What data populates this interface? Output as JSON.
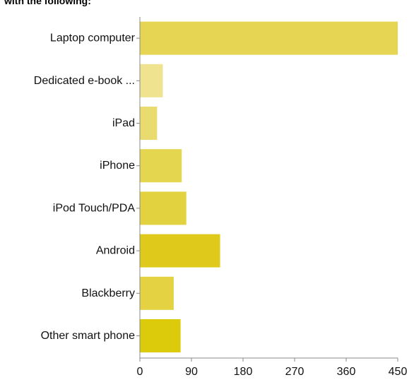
{
  "chart_data": {
    "type": "bar",
    "orientation": "horizontal",
    "title": "with the following:",
    "categories": [
      "Laptop computer",
      "Dedicated e-book ...",
      "iPad",
      "iPhone",
      "iPod Touch/PDA",
      "Android",
      "Blackberry",
      "Other smart phone"
    ],
    "values": [
      450,
      40,
      30,
      73,
      81,
      140,
      59,
      71
    ],
    "bar_colors": [
      "#e6d453",
      "#efe38f",
      "#e9db6d",
      "#e5d64f",
      "#e3d240",
      "#dfca1c",
      "#e4d243",
      "#dccb0a"
    ],
    "xlim": [
      0,
      450
    ],
    "xticks": [
      "0",
      "90",
      "180",
      "270",
      "360",
      "450"
    ],
    "xlabel": "",
    "ylabel": "",
    "grid": false,
    "legend": "none"
  }
}
